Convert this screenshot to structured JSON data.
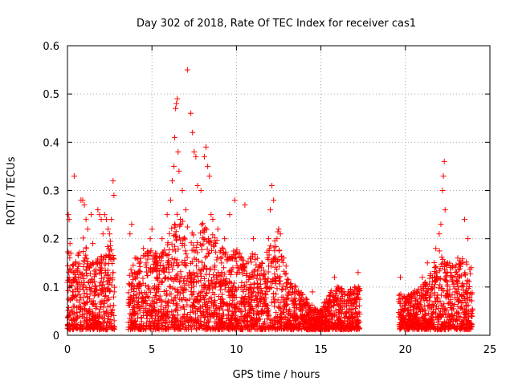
{
  "chart_data": {
    "type": "scatter",
    "title": "Day 302 of 2018, Rate Of TEC Index for receiver cas1",
    "xlabel": "GPS time / hours",
    "ylabel": "ROTI / TECUs",
    "xlim": [
      0,
      25
    ],
    "ylim": [
      0,
      0.6
    ],
    "xticks": [
      0,
      5,
      10,
      15,
      20,
      25
    ],
    "yticks": [
      0,
      0.1,
      0.2,
      0.3,
      0.4,
      0.5,
      0.6
    ],
    "xtick_labels": [
      "0",
      "5",
      "10",
      "15",
      "20",
      "25"
    ],
    "ytick_labels": [
      "0",
      "0.1",
      "0.2",
      "0.3",
      "0.4",
      "0.5",
      "0.6"
    ],
    "grid": true,
    "legend": "none",
    "marker": "+",
    "series": [
      {
        "name": "ROTI",
        "color": "#ff0000",
        "points": [
          [
            0.05,
            0.25
          ],
          [
            0.1,
            0.24
          ],
          [
            0.15,
            0.19
          ],
          [
            0.2,
            0.17
          ],
          [
            0.1,
            0.12
          ],
          [
            0.3,
            0.09
          ],
          [
            0.4,
            0.33
          ],
          [
            0.5,
            0.15
          ],
          [
            0.6,
            0.1
          ],
          [
            0.8,
            0.28
          ],
          [
            0.9,
            0.28
          ],
          [
            1.0,
            0.27
          ],
          [
            1.1,
            0.24
          ],
          [
            1.2,
            0.22
          ],
          [
            1.4,
            0.25
          ],
          [
            1.5,
            0.19
          ],
          [
            1.7,
            0.15
          ],
          [
            1.8,
            0.26
          ],
          [
            1.9,
            0.25
          ],
          [
            2.0,
            0.24
          ],
          [
            2.1,
            0.21
          ],
          [
            2.2,
            0.25
          ],
          [
            2.3,
            0.24
          ],
          [
            2.4,
            0.22
          ],
          [
            2.5,
            0.21
          ],
          [
            2.6,
            0.24
          ],
          [
            2.7,
            0.32
          ],
          [
            2.75,
            0.29
          ],
          [
            3.7,
            0.21
          ],
          [
            3.8,
            0.23
          ],
          [
            4.0,
            0.16
          ],
          [
            4.5,
            0.18
          ],
          [
            4.9,
            0.2
          ],
          [
            5.0,
            0.22
          ],
          [
            5.2,
            0.17
          ],
          [
            5.6,
            0.2
          ],
          [
            5.9,
            0.25
          ],
          [
            6.1,
            0.28
          ],
          [
            6.2,
            0.32
          ],
          [
            6.3,
            0.35
          ],
          [
            6.35,
            0.41
          ],
          [
            6.4,
            0.47
          ],
          [
            6.45,
            0.48
          ],
          [
            6.5,
            0.49
          ],
          [
            6.55,
            0.38
          ],
          [
            6.6,
            0.34
          ],
          [
            6.8,
            0.3
          ],
          [
            7.0,
            0.26
          ],
          [
            7.1,
            0.55
          ],
          [
            7.3,
            0.46
          ],
          [
            7.4,
            0.42
          ],
          [
            7.5,
            0.38
          ],
          [
            7.6,
            0.37
          ],
          [
            7.7,
            0.31
          ],
          [
            7.9,
            0.3
          ],
          [
            8.1,
            0.37
          ],
          [
            8.2,
            0.39
          ],
          [
            8.3,
            0.35
          ],
          [
            8.4,
            0.33
          ],
          [
            8.5,
            0.25
          ],
          [
            8.6,
            0.24
          ],
          [
            8.9,
            0.22
          ],
          [
            9.3,
            0.2
          ],
          [
            9.6,
            0.25
          ],
          [
            9.9,
            0.28
          ],
          [
            10.2,
            0.17
          ],
          [
            10.5,
            0.27
          ],
          [
            11.0,
            0.2
          ],
          [
            11.5,
            0.15
          ],
          [
            11.9,
            0.2
          ],
          [
            12.0,
            0.26
          ],
          [
            12.1,
            0.31
          ],
          [
            12.2,
            0.28
          ],
          [
            12.4,
            0.2
          ],
          [
            12.5,
            0.22
          ],
          [
            12.6,
            0.21
          ],
          [
            12.8,
            0.16
          ],
          [
            13.0,
            0.1
          ],
          [
            13.5,
            0.07
          ],
          [
            14.0,
            0.06
          ],
          [
            14.5,
            0.09
          ],
          [
            15.0,
            0.05
          ],
          [
            15.2,
            0.06
          ],
          [
            15.5,
            0.08
          ],
          [
            15.8,
            0.12
          ],
          [
            16.2,
            0.07
          ],
          [
            16.6,
            0.09
          ],
          [
            17.0,
            0.1
          ],
          [
            17.2,
            0.13
          ],
          [
            19.7,
            0.12
          ],
          [
            20.2,
            0.08
          ],
          [
            20.7,
            0.07
          ],
          [
            21.0,
            0.12
          ],
          [
            21.3,
            0.15
          ],
          [
            21.6,
            0.12
          ],
          [
            21.8,
            0.18
          ],
          [
            22.0,
            0.21
          ],
          [
            22.1,
            0.23
          ],
          [
            22.2,
            0.3
          ],
          [
            22.25,
            0.33
          ],
          [
            22.3,
            0.36
          ],
          [
            22.35,
            0.26
          ],
          [
            22.5,
            0.15
          ],
          [
            22.8,
            0.12
          ],
          [
            23.1,
            0.16
          ],
          [
            23.5,
            0.24
          ],
          [
            23.7,
            0.2
          ],
          [
            23.9,
            0.14
          ]
        ],
        "envelope": [
          [
            0,
            0.17
          ],
          [
            0.5,
            0.15
          ],
          [
            1,
            0.2
          ],
          [
            1.5,
            0.14
          ],
          [
            2,
            0.17
          ],
          [
            2.5,
            0.2
          ],
          [
            3,
            0.12
          ],
          [
            3.5,
            0.1
          ],
          [
            4,
            0.15
          ],
          [
            4.5,
            0.16
          ],
          [
            5,
            0.17
          ],
          [
            5.5,
            0.15
          ],
          [
            6,
            0.2
          ],
          [
            6.5,
            0.24
          ],
          [
            7,
            0.22
          ],
          [
            7.5,
            0.2
          ],
          [
            8,
            0.22
          ],
          [
            8.5,
            0.2
          ],
          [
            9,
            0.18
          ],
          [
            9.5,
            0.16
          ],
          [
            10,
            0.17
          ],
          [
            10.5,
            0.14
          ],
          [
            11,
            0.16
          ],
          [
            11.5,
            0.15
          ],
          [
            12,
            0.19
          ],
          [
            12.5,
            0.21
          ],
          [
            13,
            0.12
          ],
          [
            13.5,
            0.09
          ],
          [
            14,
            0.07
          ],
          [
            14.5,
            0.05
          ],
          [
            15,
            0.04
          ],
          [
            15.5,
            0.08
          ],
          [
            16,
            0.09
          ],
          [
            16.5,
            0.08
          ],
          [
            17,
            0.09
          ],
          [
            19.6,
            0.08
          ],
          [
            20,
            0.07
          ],
          [
            20.5,
            0.08
          ],
          [
            21,
            0.09
          ],
          [
            21.5,
            0.12
          ],
          [
            22,
            0.18
          ],
          [
            22.5,
            0.14
          ],
          [
            23,
            0.14
          ],
          [
            23.5,
            0.15
          ],
          [
            24,
            0.12
          ]
        ],
        "segments": [
          [
            0,
            2.8
          ],
          [
            3.6,
            17.3
          ],
          [
            19.6,
            24.0
          ]
        ]
      }
    ]
  }
}
